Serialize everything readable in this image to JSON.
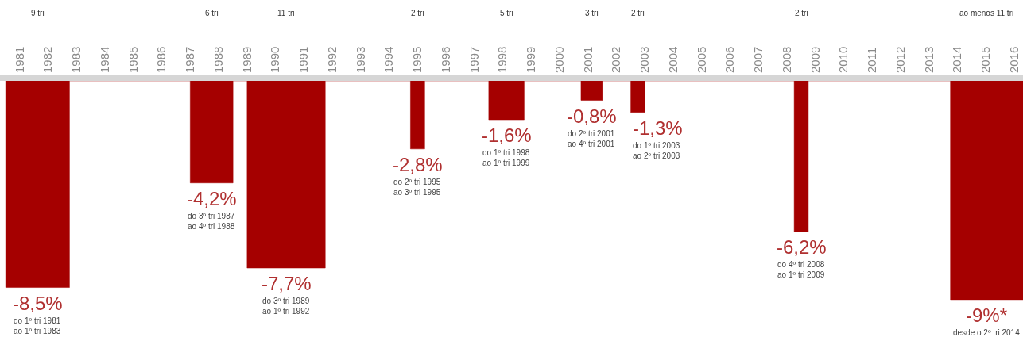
{
  "chart_data": {
    "type": "area",
    "xlim": [
      "1980-10-20",
      "2016-10-20"
    ],
    "ylim": [
      -10.7,
      0
    ],
    "xticks": [
      {
        "value": "1981-07-01",
        "label": "1981"
      },
      {
        "value": "1982-07-01",
        "label": "1982"
      },
      {
        "value": "1983-07-01",
        "label": "1983"
      },
      {
        "value": "1984-07-01",
        "label": "1984"
      },
      {
        "value": "1985-07-01",
        "label": "1985"
      },
      {
        "value": "1986-07-01",
        "label": "1986"
      },
      {
        "value": "1987-07-01",
        "label": "1987"
      },
      {
        "value": "1988-07-01",
        "label": "1988"
      },
      {
        "value": "1989-07-01",
        "label": "1989"
      },
      {
        "value": "1990-07-01",
        "label": "1990"
      },
      {
        "value": "1991-07-01",
        "label": "1991"
      },
      {
        "value": "1992-07-01",
        "label": "1992"
      },
      {
        "value": "1993-07-01",
        "label": "1993"
      },
      {
        "value": "1994-07-01",
        "label": "1994"
      },
      {
        "value": "1995-07-01",
        "label": "1995"
      },
      {
        "value": "1996-07-01",
        "label": "1996"
      },
      {
        "value": "1997-07-01",
        "label": "1997"
      },
      {
        "value": "1998-07-01",
        "label": "1998"
      },
      {
        "value": "1999-07-01",
        "label": "1999"
      },
      {
        "value": "2000-07-01",
        "label": "2000"
      },
      {
        "value": "2001-07-01",
        "label": "2001"
      },
      {
        "value": "2002-07-01",
        "label": "2002"
      },
      {
        "value": "2003-07-01",
        "label": "2003"
      },
      {
        "value": "2004-07-01",
        "label": "2004"
      },
      {
        "value": "2005-07-01",
        "label": "2005"
      },
      {
        "value": "2006-07-01",
        "label": "2006"
      },
      {
        "value": "2007-07-01",
        "label": "2007"
      },
      {
        "value": "2008-07-01",
        "label": "2008"
      },
      {
        "value": "2009-07-01",
        "label": "2009"
      },
      {
        "value": "2010-07-01",
        "label": "2010"
      },
      {
        "value": "2011-07-01",
        "label": "2011"
      },
      {
        "value": "2012-07-01",
        "label": "2012"
      },
      {
        "value": "2013-07-01",
        "label": "2013"
      },
      {
        "value": "2014-07-01",
        "label": "2014"
      },
      {
        "value": "2015-07-01",
        "label": "2015"
      },
      {
        "value": "2016-07-01",
        "label": "2016"
      }
    ],
    "tick_labels": "x",
    "series": [
      {
        "color": "#a50000",
        "x": [
          "1981-01-01",
          "1981-01-01",
          "1983-04-01",
          "1983-04-01",
          "1987-07-01",
          "1987-07-01",
          "1989-01-01",
          "1989-01-01",
          "1989-07-01",
          "1989-07-01",
          "1992-04-01",
          "1992-04-01",
          "1995-04-01",
          "1995-04-01",
          "1995-10-01",
          "1995-10-01",
          "1998-01-01",
          "1998-01-01",
          "1999-04-01",
          "1999-04-01",
          "2001-04-01",
          "2001-04-01",
          "2002-01-01",
          "2002-01-01",
          "2003-01-01",
          "2003-01-01",
          "2003-07-01",
          "2003-07-01",
          "2008-10-01",
          "2008-10-01",
          "2009-04-01",
          "2009-04-01",
          "2014-04-01",
          "2014-04-01",
          "2016-10-20"
        ],
        "values": [
          0,
          -8.5,
          -8.5,
          0,
          0,
          -4.2,
          -4.2,
          0,
          0,
          -7.7,
          -7.7,
          0,
          0,
          -2.8,
          -2.8,
          0,
          0,
          -1.6,
          -1.6,
          0,
          0,
          -0.8,
          -0.8,
          0,
          0,
          -1.3,
          -1.3,
          0,
          0,
          -6.2,
          -6.2,
          0,
          0,
          -9,
          -9
        ],
        "value_labels": [
          null,
          "-8,5%",
          null,
          null,
          null,
          "-4,2%",
          null,
          null,
          null,
          "-7,7%",
          null,
          null,
          null,
          "-2,8%",
          null,
          null,
          null,
          "-1,6%",
          null,
          null,
          null,
          "-0,8%",
          null,
          null,
          null,
          "-1,3%",
          null,
          null,
          null,
          "-6,2%",
          null,
          null,
          null,
          "-9%*",
          null
        ]
      }
    ],
    "annotations": [
      "9 tri",
      "6 tri",
      "11 tri",
      "2 tri",
      "5 tri",
      "3 tri",
      "2 tri",
      "2 tri",
      "ao menos 11 tri",
      "do 1º tri 1981\nao 1º tri 1983",
      "do 3º tri 1987\nao 4º tri 1988",
      "do 3º tri 1989\nao 1º tri 1992",
      "do 2º tri 1995\nao 3º tri 1995",
      "do 1º tri 1998\nao 1º tri 1999",
      "do 2º tri 2001\nao 4º tri 2001",
      "do 1º tri 2003\nao 2º tri 2003",
      "do 4º tri 2008\nao 1º tri 2009",
      "desde o 2º tri 2014"
    ]
  }
}
